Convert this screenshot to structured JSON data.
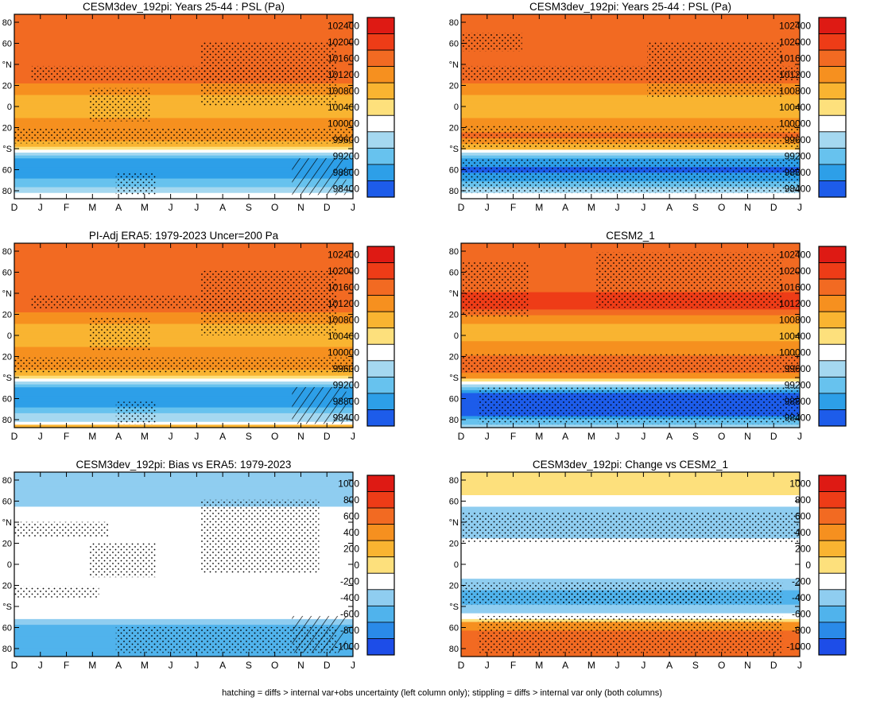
{
  "footnote": "hatching = diffs > internal var+obs uncertainty (left column only); stippling = diffs > internal var only (both columns)",
  "chart_data": [
    {
      "type": "heatmap",
      "title": "CESM3dev_192pi: Years 25-44 : PSL (Pa)",
      "field": "sea level pressure",
      "x_months": [
        "D",
        "J",
        "F",
        "M",
        "A",
        "M",
        "J",
        "J",
        "A",
        "S",
        "O",
        "N",
        "D",
        "J"
      ],
      "y_ticks": [
        "80",
        "60",
        "°N",
        "20",
        "0",
        "20",
        "°S",
        "60",
        "80"
      ],
      "colorbar_labels": [
        "102400",
        "102000",
        "101600",
        "101200",
        "100800",
        "100400",
        "100000",
        "99600",
        "99200",
        "98800",
        "98400"
      ],
      "latitude_profile": {
        "lat": [
          90,
          80,
          70,
          60,
          50,
          40,
          30,
          20,
          10,
          0,
          -10,
          -20,
          -30,
          -40,
          -50,
          -60,
          -70,
          -80,
          -90
        ],
        "psl_Pa": [
          101500,
          101700,
          101600,
          101400,
          101500,
          101700,
          101800,
          101300,
          100900,
          100800,
          101000,
          101200,
          101300,
          100600,
          99000,
          98600,
          98900,
          99500,
          100600
        ]
      },
      "hatching": true,
      "stippling": true
    },
    {
      "type": "heatmap",
      "title": "CESM3dev_192pi: Years 25-44 : PSL (Pa)",
      "field": "sea level pressure",
      "x_months": [
        "D",
        "J",
        "F",
        "M",
        "A",
        "M",
        "J",
        "J",
        "A",
        "S",
        "O",
        "N",
        "D",
        "J"
      ],
      "y_ticks": [
        "80",
        "60",
        "°N",
        "20",
        "0",
        "20",
        "°S",
        "60",
        "80"
      ],
      "colorbar_labels": [
        "102400",
        "102000",
        "101600",
        "101200",
        "100800",
        "100400",
        "100000",
        "99600",
        "99200",
        "98800",
        "98400"
      ],
      "latitude_profile": {
        "lat": [
          90,
          80,
          70,
          60,
          50,
          40,
          30,
          20,
          10,
          0,
          -10,
          -20,
          -30,
          -40,
          -50,
          -60,
          -70,
          -80,
          -90
        ],
        "psl_Pa": [
          101500,
          101700,
          101600,
          101400,
          101500,
          101700,
          101800,
          101300,
          100900,
          100800,
          101000,
          101300,
          101500,
          100800,
          99100,
          98500,
          98800,
          99500,
          100600
        ]
      },
      "hatching": false,
      "stippling": true
    },
    {
      "type": "heatmap",
      "title": "PI-Adj ERA5: 1979-2023 Uncer=200 Pa",
      "field": "sea level pressure",
      "x_months": [
        "D",
        "J",
        "F",
        "M",
        "A",
        "M",
        "J",
        "J",
        "A",
        "S",
        "O",
        "N",
        "D",
        "J"
      ],
      "y_ticks": [
        "80",
        "60",
        "°N",
        "20",
        "0",
        "20",
        "°S",
        "60",
        "80"
      ],
      "colorbar_labels": [
        "102400",
        "102000",
        "101600",
        "101200",
        "100800",
        "100400",
        "100000",
        "99600",
        "99200",
        "98800",
        "98400"
      ],
      "latitude_profile": {
        "lat": [
          90,
          80,
          70,
          60,
          50,
          40,
          30,
          20,
          10,
          0,
          -10,
          -20,
          -30,
          -40,
          -50,
          -60,
          -70,
          -80,
          -90
        ],
        "psl_Pa": [
          101600,
          101800,
          101600,
          101400,
          101500,
          101700,
          101800,
          101300,
          100900,
          100800,
          101000,
          101200,
          101300,
          100600,
          99000,
          98600,
          98900,
          99600,
          100800
        ]
      },
      "hatching": true,
      "stippling": true
    },
    {
      "type": "heatmap",
      "title": "CESM2_1",
      "field": "sea level pressure",
      "x_months": [
        "D",
        "J",
        "F",
        "M",
        "A",
        "M",
        "J",
        "J",
        "A",
        "S",
        "O",
        "N",
        "D",
        "J"
      ],
      "y_ticks": [
        "80",
        "60",
        "°N",
        "20",
        "0",
        "20",
        "°S",
        "60",
        "80"
      ],
      "colorbar_labels": [
        "102400",
        "102000",
        "101600",
        "101200",
        "100800",
        "100400",
        "100000",
        "99600",
        "99200",
        "98800",
        "98400"
      ],
      "latitude_profile": {
        "lat": [
          90,
          80,
          70,
          60,
          50,
          40,
          30,
          20,
          10,
          0,
          -10,
          -20,
          -30,
          -40,
          -50,
          -60,
          -70,
          -80,
          -90
        ],
        "psl_Pa": [
          101400,
          101600,
          101500,
          101400,
          101600,
          101900,
          102000,
          101400,
          100900,
          100800,
          101100,
          101400,
          101800,
          101200,
          99400,
          98200,
          98200,
          98700,
          99800
        ]
      },
      "hatching": false,
      "stippling": true
    },
    {
      "type": "heatmap",
      "title": "CESM3dev_192pi: Bias vs ERA5: 1979-2023",
      "field": "sea level pressure difference",
      "x_months": [
        "D",
        "J",
        "F",
        "M",
        "A",
        "M",
        "J",
        "J",
        "A",
        "S",
        "O",
        "N",
        "D",
        "J"
      ],
      "y_ticks": [
        "80",
        "60",
        "°N",
        "20",
        "0",
        "20",
        "°S",
        "60",
        "80"
      ],
      "colorbar_labels": [
        "1000",
        "800",
        "600",
        "400",
        "200",
        "0",
        "-200",
        "-400",
        "-600",
        "-800",
        "-1000"
      ],
      "latitude_profile": {
        "lat": [
          90,
          80,
          70,
          60,
          50,
          40,
          30,
          20,
          10,
          0,
          -10,
          -20,
          -30,
          -40,
          -50,
          -60,
          -70,
          -80,
          -90
        ],
        "diff_Pa": [
          -100,
          -250,
          -300,
          -200,
          0,
          0,
          0,
          0,
          0,
          0,
          0,
          0,
          0,
          -100,
          0,
          -300,
          -450,
          -500,
          -300
        ]
      },
      "hatching": true,
      "stippling": true
    },
    {
      "type": "heatmap",
      "title": "CESM3dev_192pi: Change vs CESM2_1",
      "field": "sea level pressure difference",
      "x_months": [
        "D",
        "J",
        "F",
        "M",
        "A",
        "M",
        "J",
        "J",
        "A",
        "S",
        "O",
        "N",
        "D",
        "J"
      ],
      "y_ticks": [
        "80",
        "60",
        "°N",
        "20",
        "0",
        "20",
        "°S",
        "60",
        "80"
      ],
      "colorbar_labels": [
        "1000",
        "800",
        "600",
        "400",
        "200",
        "0",
        "-200",
        "-400",
        "-600",
        "-800",
        "-1000"
      ],
      "latitude_profile": {
        "lat": [
          90,
          80,
          70,
          60,
          50,
          40,
          30,
          20,
          10,
          0,
          -10,
          -20,
          -30,
          -40,
          -50,
          -60,
          -70,
          -80,
          -90
        ],
        "diff_Pa": [
          100,
          150,
          150,
          0,
          -250,
          -250,
          -200,
          0,
          0,
          0,
          0,
          -200,
          -350,
          -300,
          0,
          400,
          650,
          700,
          500
        ]
      },
      "hatching": false,
      "stippling": true
    }
  ]
}
